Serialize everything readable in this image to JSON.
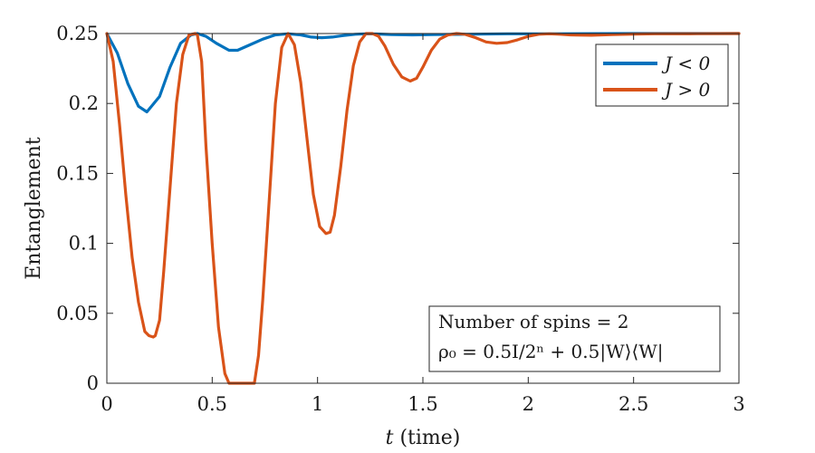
{
  "chart_data": {
    "type": "line",
    "xlabel_var": "t",
    "xlabel_rest": " (time)",
    "ylabel": "Entanglement",
    "xlim": [
      0,
      3
    ],
    "ylim": [
      0,
      0.25
    ],
    "xticks": [
      0,
      0.5,
      1,
      1.5,
      2,
      2.5,
      3
    ],
    "xtick_labels": [
      "0",
      "0.5",
      "1",
      "1.5",
      "2",
      "2.5",
      "3"
    ],
    "yticks": [
      0,
      0.05,
      0.1,
      0.15,
      0.2,
      0.25
    ],
    "ytick_labels": [
      "0",
      "0.05",
      "0.1",
      "0.15",
      "0.2",
      "0.25"
    ],
    "grid": false,
    "legend_position": "top-right",
    "annotation": {
      "line1": "Number of spins = 2",
      "line2": "ρ₀ = 0.5I/2ⁿ + 0.5|W⟩⟨W|",
      "position": "bottom-right"
    },
    "series": [
      {
        "name": "J < 0",
        "color": "#0072BD",
        "x": [
          0,
          0.05,
          0.1,
          0.15,
          0.19,
          0.25,
          0.3,
          0.35,
          0.4,
          0.43,
          0.47,
          0.52,
          0.58,
          0.62,
          0.68,
          0.74,
          0.8,
          0.86,
          0.92,
          0.97,
          1.02,
          1.07,
          1.12,
          1.18,
          1.23,
          1.28,
          1.35,
          1.45,
          1.55,
          1.7,
          1.9,
          2.1,
          2.5,
          3.0
        ],
        "y": [
          0.25,
          0.236,
          0.214,
          0.198,
          0.194,
          0.205,
          0.226,
          0.243,
          0.249,
          0.25,
          0.248,
          0.243,
          0.238,
          0.238,
          0.242,
          0.246,
          0.249,
          0.2498,
          0.249,
          0.2475,
          0.247,
          0.2475,
          0.2485,
          0.2495,
          0.2498,
          0.2497,
          0.2493,
          0.249,
          0.2492,
          0.2495,
          0.2498,
          0.2498,
          0.25,
          0.25
        ]
      },
      {
        "name": "J > 0",
        "color": "#D95319",
        "x": [
          0,
          0.03,
          0.06,
          0.09,
          0.12,
          0.15,
          0.18,
          0.2,
          0.22,
          0.23,
          0.25,
          0.27,
          0.3,
          0.33,
          0.36,
          0.39,
          0.42,
          0.43,
          0.45,
          0.47,
          0.5,
          0.53,
          0.56,
          0.58,
          0.7,
          0.72,
          0.74,
          0.77,
          0.8,
          0.83,
          0.86,
          0.89,
          0.92,
          0.95,
          0.98,
          1.01,
          1.04,
          1.06,
          1.08,
          1.11,
          1.14,
          1.17,
          1.2,
          1.23,
          1.26,
          1.29,
          1.32,
          1.36,
          1.4,
          1.44,
          1.47,
          1.5,
          1.54,
          1.58,
          1.62,
          1.66,
          1.7,
          1.75,
          1.8,
          1.85,
          1.9,
          1.95,
          2.0,
          2.05,
          2.1,
          2.15,
          2.2,
          2.3,
          2.4,
          2.5,
          2.6,
          2.8,
          3.0
        ],
        "y": [
          0.25,
          0.23,
          0.185,
          0.135,
          0.09,
          0.058,
          0.037,
          0.034,
          0.033,
          0.034,
          0.045,
          0.08,
          0.14,
          0.2,
          0.235,
          0.249,
          0.25,
          0.249,
          0.23,
          0.17,
          0.1,
          0.04,
          0.007,
          0.0,
          0.0,
          0.02,
          0.06,
          0.13,
          0.2,
          0.24,
          0.25,
          0.242,
          0.215,
          0.175,
          0.135,
          0.112,
          0.107,
          0.108,
          0.12,
          0.155,
          0.195,
          0.227,
          0.244,
          0.25,
          0.25,
          0.248,
          0.241,
          0.228,
          0.219,
          0.216,
          0.218,
          0.226,
          0.238,
          0.246,
          0.249,
          0.25,
          0.2495,
          0.247,
          0.244,
          0.243,
          0.2435,
          0.2455,
          0.248,
          0.2495,
          0.2498,
          0.2495,
          0.249,
          0.2488,
          0.2492,
          0.2496,
          0.2498,
          0.2499,
          0.25
        ]
      }
    ]
  }
}
